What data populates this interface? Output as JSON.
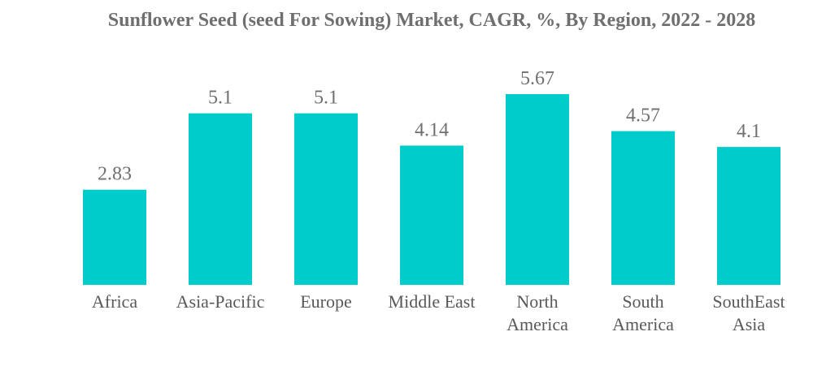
{
  "chart_data": {
    "type": "bar",
    "title": "Sunflower Seed (seed For Sowing) Market, CAGR, %, By Region, 2022 - 2028",
    "xlabel": "",
    "ylabel": "",
    "categories": [
      [
        "Africa"
      ],
      [
        "Asia-Pacific"
      ],
      [
        "Europe"
      ],
      [
        "Middle East"
      ],
      [
        "North",
        "America"
      ],
      [
        "South",
        "America"
      ],
      [
        "SouthEast",
        "Asia"
      ]
    ],
    "values": [
      2.83,
      5.1,
      5.1,
      4.14,
      5.67,
      4.57,
      4.1
    ],
    "value_labels": [
      "2.83",
      "5.1",
      "5.1",
      "4.14",
      "5.67",
      "4.57",
      "4.1"
    ],
    "ylim": [
      0,
      5.67
    ],
    "grid": false,
    "legend": "none",
    "bar_color": "#00cccc"
  }
}
